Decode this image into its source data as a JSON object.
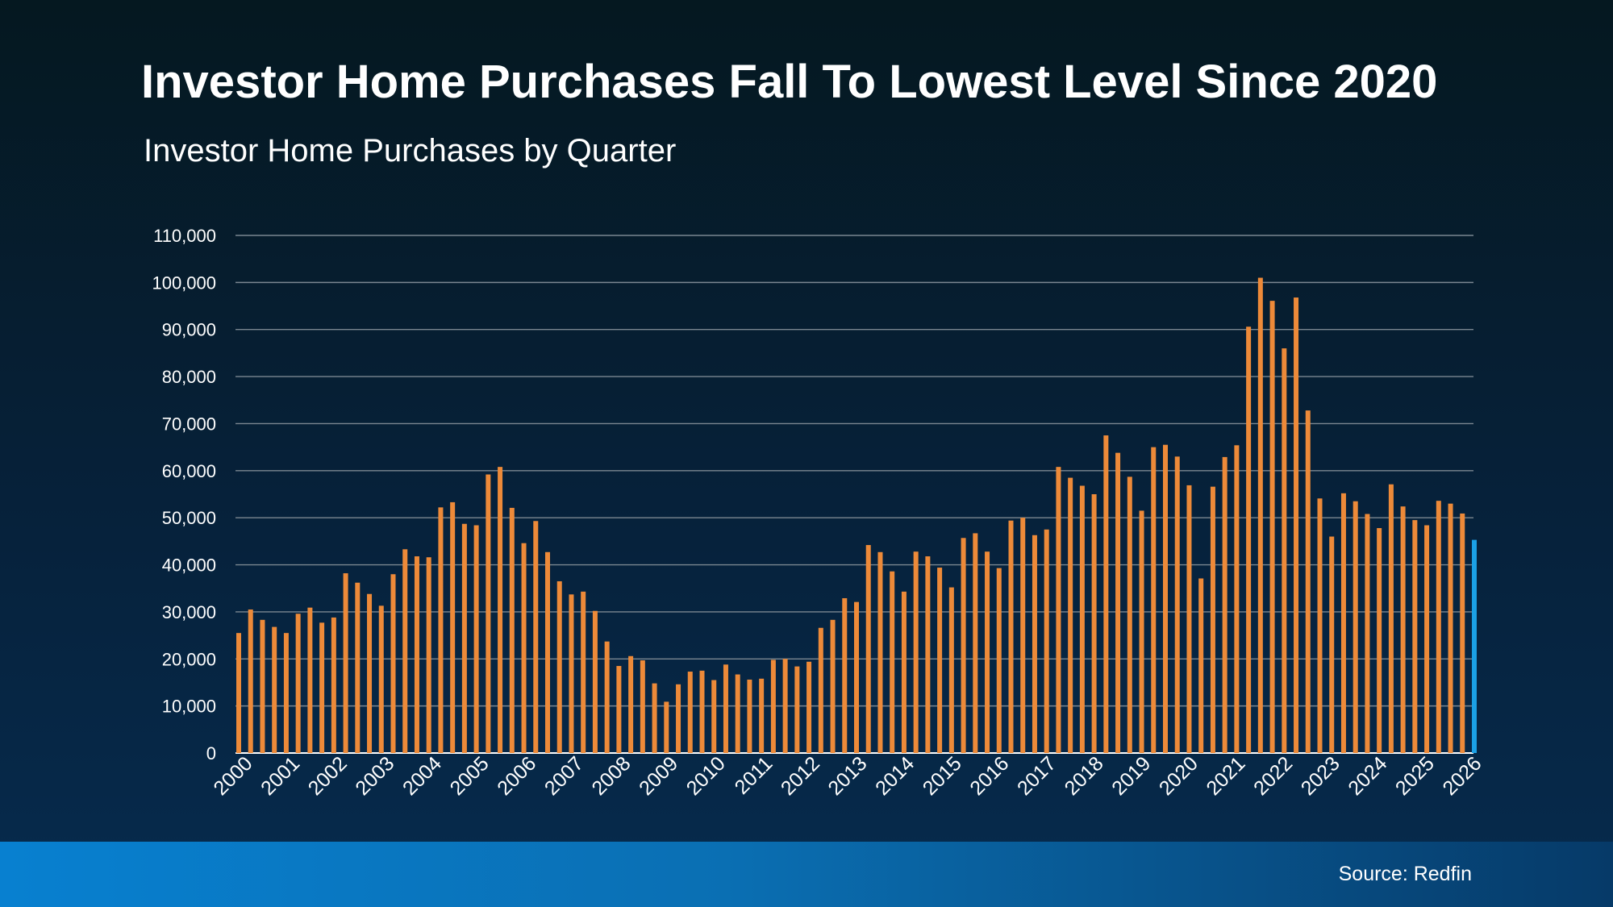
{
  "header": {
    "title": "Investor Home Purchases Fall To Lowest Level Since 2020",
    "subtitle": "Investor Home Purchases by Quarter"
  },
  "footer": {
    "source": "Source: Redfin"
  },
  "colors": {
    "bar": "#ed8a39",
    "highlight": "#1ba1e6",
    "gridline": "#7b8791",
    "text": "#ffffff"
  },
  "chart_data": {
    "type": "bar",
    "title": "Investor Home Purchases by Quarter",
    "xlabel": "",
    "ylabel": "",
    "ylim": [
      0,
      110000
    ],
    "yticks": [
      0,
      10000,
      20000,
      30000,
      40000,
      50000,
      60000,
      70000,
      80000,
      90000,
      100000,
      110000
    ],
    "ytick_labels": [
      "0",
      "10,000",
      "20,000",
      "30,000",
      "40,000",
      "50,000",
      "60,000",
      "70,000",
      "80,000",
      "90,000",
      "100,000",
      "110,000"
    ],
    "xtick_labels": [
      "2000",
      "2001",
      "2002",
      "2003",
      "2004",
      "2005",
      "2006",
      "2007",
      "2008",
      "2009",
      "2010",
      "2011",
      "2012",
      "2013",
      "2014",
      "2015",
      "2016",
      "2017",
      "2018",
      "2019",
      "2020",
      "2021",
      "2022",
      "2023",
      "2024",
      "2025",
      "2026"
    ],
    "grid": true,
    "legend": "none",
    "highlight_last": true,
    "series": [
      {
        "values": [
          25500,
          30500,
          28300,
          26800,
          25500,
          29600,
          30900,
          27700,
          28800,
          38200,
          36200,
          33800,
          31300,
          38000,
          43300,
          41800,
          41600,
          52200,
          53300,
          48700,
          48400,
          59200,
          60800,
          52100,
          44600,
          49300,
          42700,
          36500,
          33700,
          34300,
          30200,
          23700,
          18500,
          20600,
          19700,
          14800,
          10900,
          14600,
          17300,
          17500,
          15500,
          18800,
          16700,
          15600,
          15800,
          19800,
          20000,
          18400,
          19400,
          26600,
          28300,
          32900,
          32100,
          44200,
          42700,
          38600,
          34300,
          42800,
          41800,
          39400,
          35200,
          45700,
          46700,
          42800,
          39300,
          49400,
          50000,
          46300,
          47500,
          60800,
          58500,
          56800,
          55000,
          67500,
          63800,
          58700,
          51500,
          65000,
          65500,
          63000,
          56900,
          37100,
          56600,
          62900,
          65400,
          90600,
          101000,
          96100,
          86000,
          96800,
          72800,
          54100,
          46000,
          55200,
          53500,
          50800,
          47800,
          57100,
          52400,
          49500,
          48400,
          53600,
          53000,
          50900,
          45300
        ]
      }
    ]
  }
}
